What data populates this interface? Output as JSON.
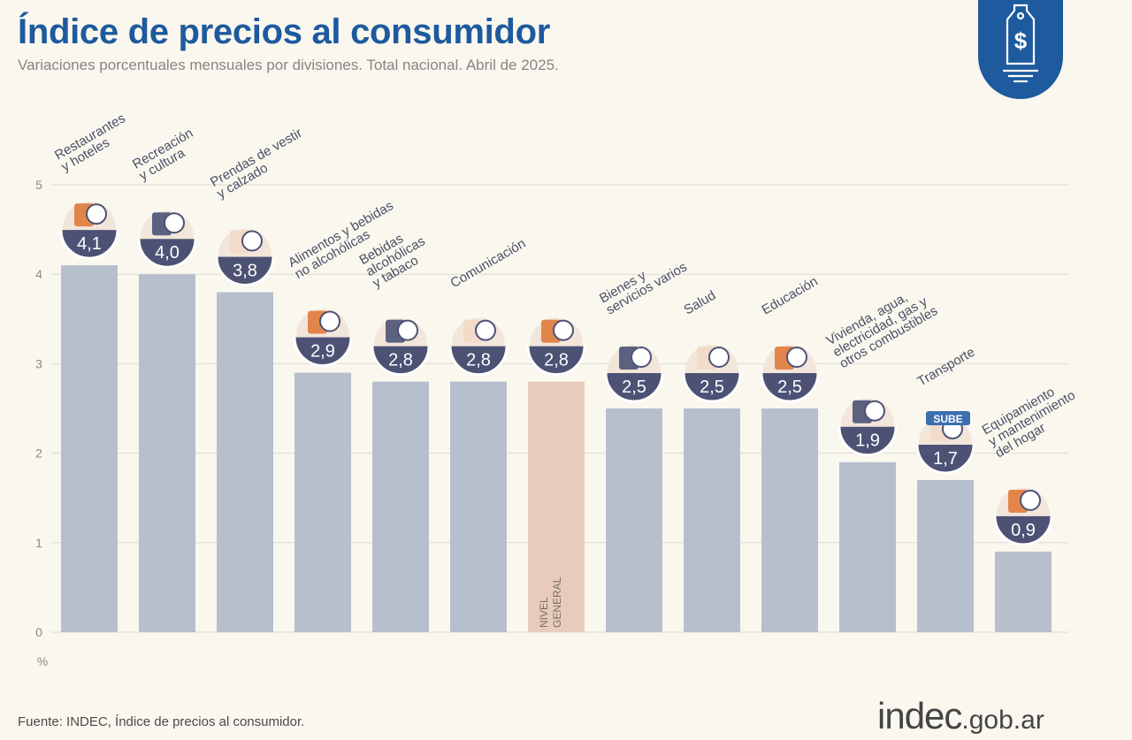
{
  "header": {
    "title": "Índice de precios al consumidor",
    "subtitle": "Variaciones porcentuales mensuales por divisiones. Total nacional. Abril de 2025."
  },
  "footer": {
    "source": "Fuente: INDEC, Índice de precios al consumidor.",
    "logo_main": "indec",
    "logo_suffix": ".gob.ar"
  },
  "badge": {
    "symbol": "$",
    "icon": "price-tag-icon"
  },
  "colors": {
    "title": "#1d5a9e",
    "bar": "#b7bfcd",
    "highlight_bar": "#e8ccbb",
    "value_circle": "#4d5275",
    "badge": "#1d5a9e"
  },
  "chart_data": {
    "type": "bar",
    "title": "Índice de precios al consumidor",
    "subtitle": "Variaciones porcentuales mensuales por divisiones. Total nacional. Abril de 2025.",
    "xlabel": "",
    "ylabel": "%",
    "ylim": [
      0,
      5
    ],
    "yticks": [
      "0",
      "1",
      "2",
      "3",
      "4",
      "5"
    ],
    "grid": true,
    "categories": [
      {
        "lines": [
          "Restaurantes",
          "y hoteles"
        ],
        "icon": "restaurant-icon"
      },
      {
        "lines": [
          "Recreación",
          "y cultura"
        ],
        "icon": "umbrella-icon"
      },
      {
        "lines": [
          "Prendas de vestir",
          "y calzado"
        ],
        "icon": "tshirt-icon"
      },
      {
        "lines": [
          "Alimentos y bebidas",
          "no alcohólicas"
        ],
        "icon": "chicken-icon"
      },
      {
        "lines": [
          "Bebidas",
          "alcohólicas",
          "y tabaco"
        ],
        "icon": "wine-bottle-icon"
      },
      {
        "lines": [
          "Comunicación"
        ],
        "icon": "phone-icon"
      },
      {
        "lines": [],
        "inner_lines": [
          "NIVEL",
          "GENERAL"
        ],
        "icon": "shopping-basket-icon"
      },
      {
        "lines": [
          "Bienes y",
          "servicios varios"
        ],
        "icon": "scissors-comb-icon"
      },
      {
        "lines": [
          "Salud"
        ],
        "icon": "medical-cross-icon"
      },
      {
        "lines": [
          "Educación"
        ],
        "icon": "notebook-icon"
      },
      {
        "lines": [
          "Vivienda, agua,",
          "electricidad, gas y",
          "otros combustibles"
        ],
        "icon": "lightbulb-icon"
      },
      {
        "lines": [
          "Transporte"
        ],
        "icon": "car-icon"
      },
      {
        "lines": [
          "Equipamiento",
          "y mantenimiento",
          "del hogar"
        ],
        "icon": "air-conditioner-icon"
      }
    ],
    "values": [
      4.1,
      4.0,
      3.8,
      2.9,
      2.8,
      2.8,
      2.8,
      2.5,
      2.5,
      2.5,
      1.9,
      1.7,
      0.9
    ],
    "value_labels": [
      "4,1",
      "4,0",
      "3,8",
      "2,9",
      "2,8",
      "2,8",
      "2,8",
      "2,5",
      "2,5",
      "2,5",
      "1,9",
      "1,7",
      "0,9"
    ],
    "highlight_index": 6,
    "icon_text": {
      "11": "SUBE"
    }
  }
}
